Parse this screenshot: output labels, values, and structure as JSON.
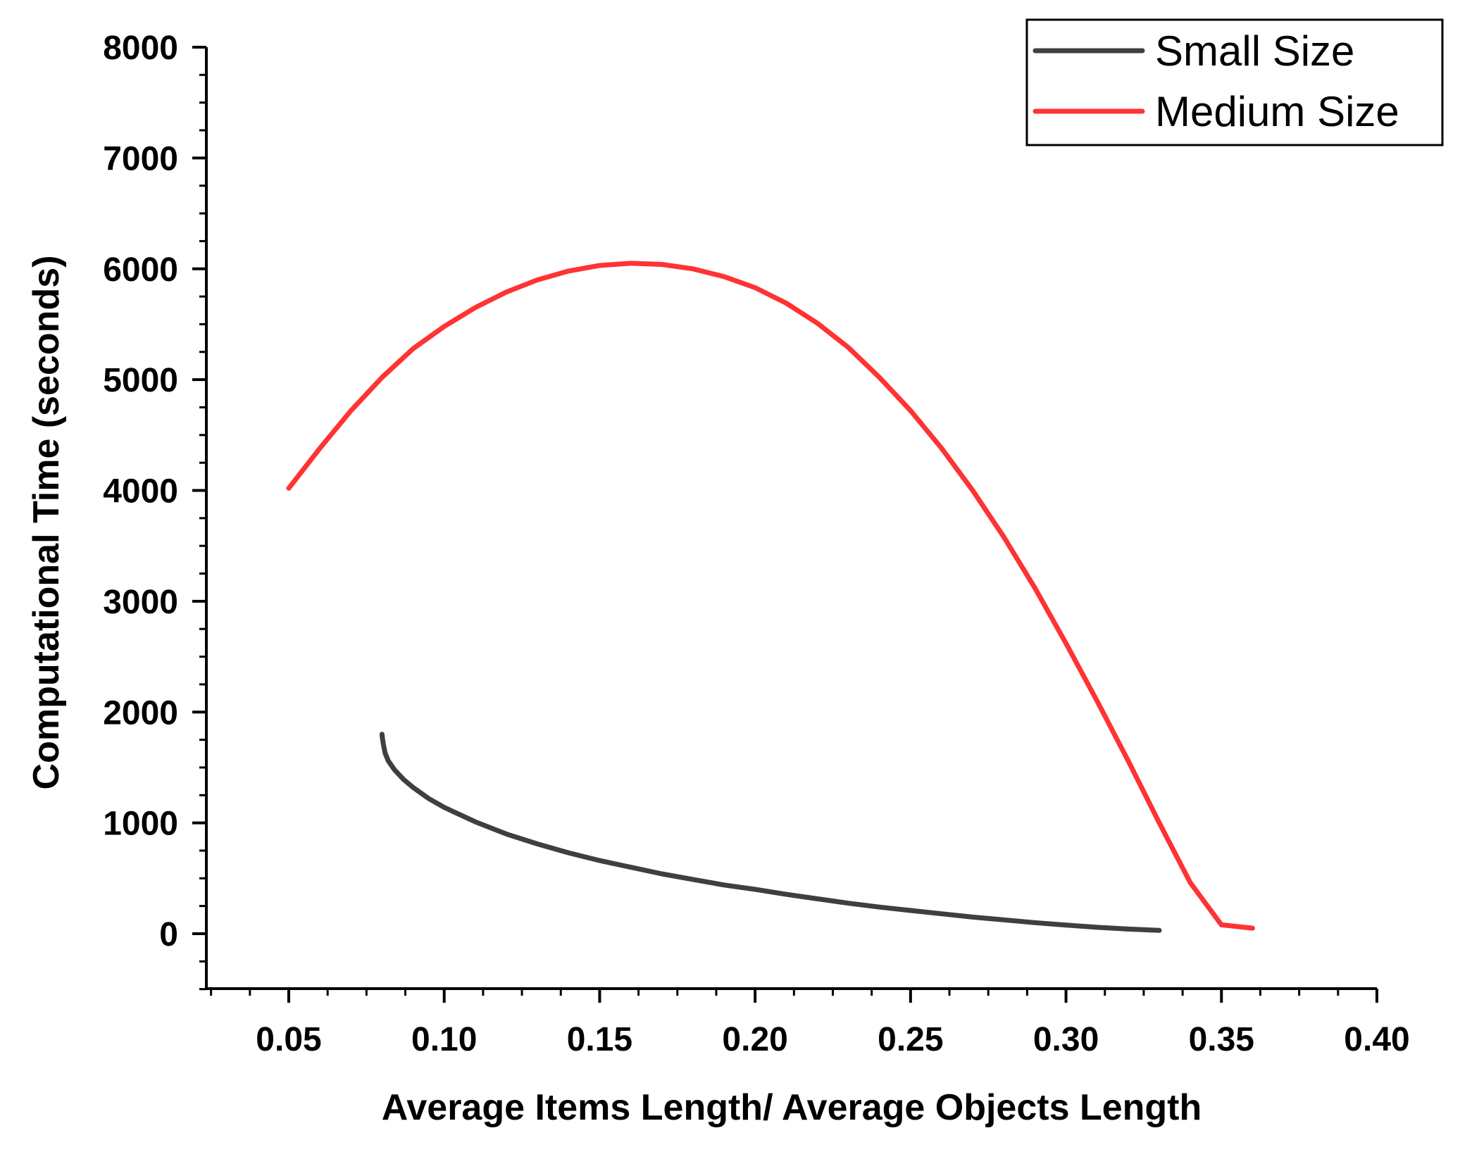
{
  "chart_data": {
    "type": "line",
    "title": "",
    "xlabel": "Average Items Length/ Average Objects Length",
    "ylabel": "Computational Time (seconds)",
    "xlim": [
      0.025,
      0.4
    ],
    "ylim": [
      -500,
      8000
    ],
    "x_ticks": [
      "0.05",
      "0.10",
      "0.15",
      "0.20",
      "0.25",
      "0.30",
      "0.35",
      "0.40"
    ],
    "x_tick_values": [
      0.05,
      0.1,
      0.15,
      0.2,
      0.25,
      0.3,
      0.35,
      0.4
    ],
    "y_ticks": [
      "0",
      "1000",
      "2000",
      "3000",
      "4000",
      "5000",
      "6000",
      "7000",
      "8000"
    ],
    "y_tick_values": [
      0,
      1000,
      2000,
      3000,
      4000,
      5000,
      6000,
      7000,
      8000
    ],
    "grid": false,
    "legend_position": "top-right",
    "series": [
      {
        "name": "Small Size",
        "color": "#3f3f3f",
        "x": [
          0.08,
          0.0802,
          0.0805,
          0.081,
          0.082,
          0.084,
          0.087,
          0.09,
          0.095,
          0.1,
          0.11,
          0.12,
          0.13,
          0.14,
          0.15,
          0.16,
          0.17,
          0.18,
          0.19,
          0.2,
          0.21,
          0.22,
          0.23,
          0.24,
          0.25,
          0.26,
          0.27,
          0.28,
          0.29,
          0.3,
          0.31,
          0.32,
          0.33
        ],
        "values": [
          1800,
          1750,
          1700,
          1630,
          1560,
          1480,
          1390,
          1320,
          1220,
          1140,
          1010,
          900,
          810,
          730,
          660,
          600,
          540,
          490,
          440,
          400,
          355,
          315,
          275,
          240,
          210,
          180,
          150,
          125,
          100,
          78,
          58,
          42,
          30
        ]
      },
      {
        "name": "Medium Size",
        "color": "#ff3333",
        "x": [
          0.05,
          0.06,
          0.07,
          0.08,
          0.09,
          0.1,
          0.11,
          0.12,
          0.13,
          0.14,
          0.15,
          0.16,
          0.17,
          0.18,
          0.19,
          0.2,
          0.21,
          0.22,
          0.23,
          0.24,
          0.25,
          0.26,
          0.27,
          0.28,
          0.29,
          0.3,
          0.31,
          0.32,
          0.33,
          0.34,
          0.35,
          0.36
        ],
        "values": [
          4020,
          4380,
          4720,
          5020,
          5280,
          5480,
          5650,
          5790,
          5900,
          5980,
          6030,
          6050,
          6040,
          6000,
          5930,
          5830,
          5690,
          5510,
          5290,
          5020,
          4720,
          4380,
          4000,
          3580,
          3120,
          2620,
          2100,
          1560,
          1000,
          460,
          80,
          50
        ]
      }
    ]
  }
}
